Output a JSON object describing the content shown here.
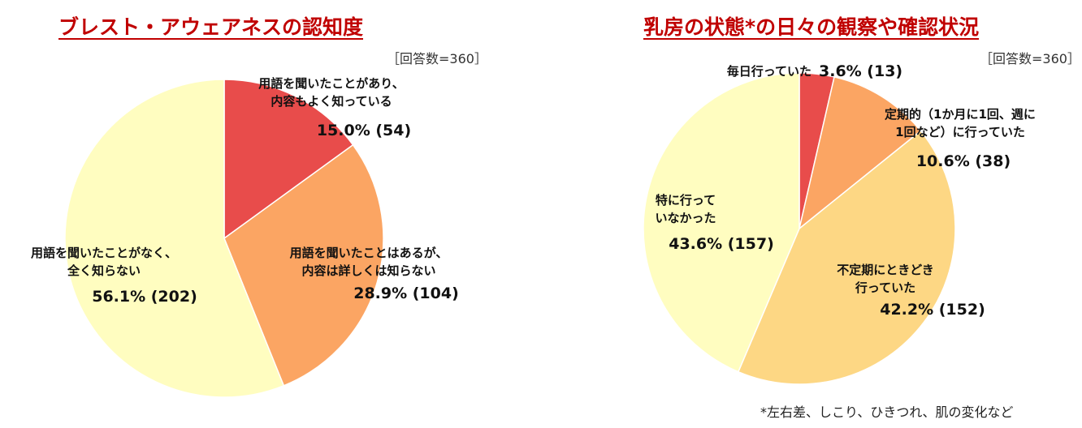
{
  "chart_data": [
    {
      "type": "pie",
      "title": "ブレスト・アウェアネスの認知度",
      "respondents": "［回答数=360］",
      "slices": [
        {
          "label_lines": [
            "用語を聞いたことがあり、",
            "内容もよく知っている"
          ],
          "value_text": "15.0% (54)",
          "percent": 15.0,
          "count": 54,
          "color": "#e84c4b"
        },
        {
          "label_lines": [
            "用語を聞いたことはあるが、",
            "内容は詳しくは知らない"
          ],
          "value_text": "28.9% (104)",
          "percent": 28.9,
          "count": 104,
          "color": "#fba563"
        },
        {
          "label_lines": [
            "用語を聞いたことがなく、",
            "全く知らない"
          ],
          "value_text": "56.1% (202)",
          "percent": 56.1,
          "count": 202,
          "color": "#fffdc0"
        }
      ]
    },
    {
      "type": "pie",
      "title": "乳房の状態*の日々の観察や確認状況",
      "respondents": "［回答数=360］",
      "footnote": "*左右差、しこり、ひきつれ、肌の変化など",
      "slices": [
        {
          "label_lines": [
            "毎日行っていた"
          ],
          "value_text": "3.6% (13)",
          "percent": 3.6,
          "count": 13,
          "color": "#e84c4b"
        },
        {
          "label_lines": [
            "定期的（1か月に1回、週に",
            "1回など）に行っていた"
          ],
          "value_text": "10.6% (38)",
          "percent": 10.6,
          "count": 38,
          "color": "#fba563"
        },
        {
          "label_lines": [
            "不定期にときどき",
            "行っていた"
          ],
          "value_text": "42.2% (152)",
          "percent": 42.2,
          "count": 152,
          "color": "#fdd784"
        },
        {
          "label_lines": [
            "特に行って",
            "いなかった"
          ],
          "value_text": "43.6% (157)",
          "percent": 43.6,
          "count": 157,
          "color": "#fffdc0"
        }
      ]
    }
  ]
}
